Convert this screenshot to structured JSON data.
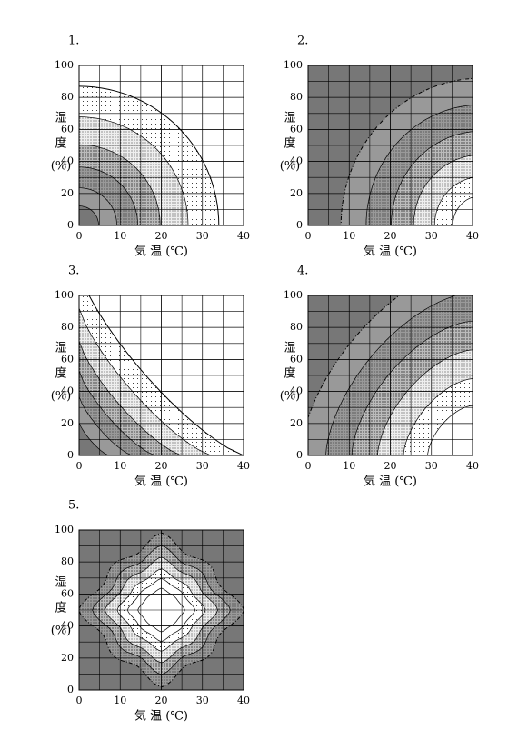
{
  "chart_data": [
    {
      "type": "contour",
      "title": "1.",
      "xlabel": "気 温 (℃)",
      "ylabel": [
        "湿",
        "度",
        "(%)"
      ],
      "xlim": [
        0,
        40
      ],
      "ylim": [
        0,
        100
      ],
      "xticks": [
        0,
        10,
        20,
        30,
        40
      ],
      "yticks": [
        0,
        20,
        40,
        60,
        80,
        100
      ],
      "grid": true
    },
    {
      "type": "contour",
      "title": "2.",
      "xlabel": "気 温 (℃)",
      "ylabel": [
        "湿",
        "度",
        "(%)"
      ],
      "xlim": [
        0,
        40
      ],
      "ylim": [
        0,
        100
      ],
      "xticks": [
        0,
        10,
        20,
        30,
        40
      ],
      "yticks": [
        0,
        20,
        40,
        60,
        80,
        100
      ],
      "grid": true
    },
    {
      "type": "contour",
      "title": "3.",
      "xlabel": "気 温 (℃)",
      "ylabel": [
        "湿",
        "度",
        "(%)"
      ],
      "xlim": [
        0,
        40
      ],
      "ylim": [
        0,
        100
      ],
      "xticks": [
        0,
        10,
        20,
        30,
        40
      ],
      "yticks": [
        0,
        20,
        40,
        60,
        80,
        100
      ],
      "grid": true
    },
    {
      "type": "contour",
      "title": "4.",
      "xlabel": "気 温 (℃)",
      "ylabel": [
        "湿",
        "度",
        "(%)"
      ],
      "xlim": [
        0,
        40
      ],
      "ylim": [
        0,
        100
      ],
      "xticks": [
        0,
        10,
        20,
        30,
        40
      ],
      "yticks": [
        0,
        20,
        40,
        60,
        80,
        100
      ],
      "grid": true
    },
    {
      "type": "contour",
      "title": "5.",
      "xlabel": "気 温 (℃)",
      "ylabel": [
        "湿",
        "度",
        "(%)"
      ],
      "xlim": [
        0,
        40
      ],
      "ylim": [
        0,
        100
      ],
      "xticks": [
        0,
        10,
        20,
        30,
        40
      ],
      "yticks": [
        0,
        20,
        40,
        60,
        80,
        100
      ],
      "grid": true
    }
  ]
}
